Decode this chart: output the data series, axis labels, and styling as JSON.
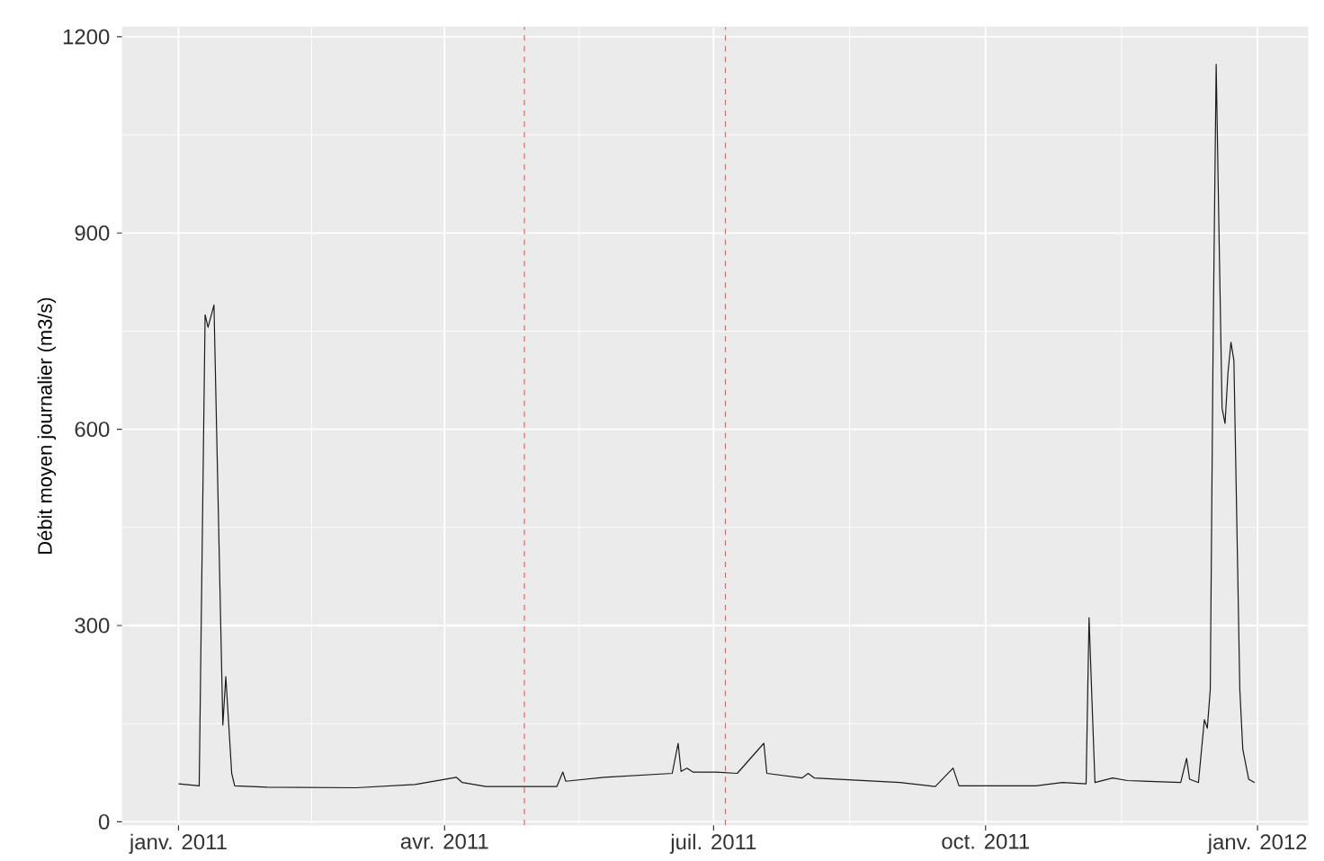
{
  "chart_data": {
    "type": "line",
    "ylabel": "Débit moyen journalier (m3/s)",
    "x": [
      "2011-01-01",
      "2011-01-08",
      "2011-01-10",
      "2011-01-11",
      "2011-01-13",
      "2011-01-16",
      "2011-01-17",
      "2011-01-19",
      "2011-01-20",
      "2011-01-31",
      "2011-03-02",
      "2011-03-22",
      "2011-04-05",
      "2011-04-07",
      "2011-04-15",
      "2011-05-09",
      "2011-05-11",
      "2011-05-12",
      "2011-05-25",
      "2011-06-17",
      "2011-06-19",
      "2011-06-20",
      "2011-06-22",
      "2011-06-24",
      "2011-07-02",
      "2011-07-09",
      "2011-07-18",
      "2011-07-19",
      "2011-07-31",
      "2011-08-02",
      "2011-08-04",
      "2011-09-02",
      "2011-09-14",
      "2011-09-20",
      "2011-09-22",
      "2011-10-18",
      "2011-10-27",
      "2011-11-04",
      "2011-11-05",
      "2011-11-06",
      "2011-11-07",
      "2011-11-13",
      "2011-11-18",
      "2011-12-06",
      "2011-12-08",
      "2011-12-09",
      "2011-12-12",
      "2011-12-14",
      "2011-12-15",
      "2011-12-16",
      "2011-12-17",
      "2011-12-18",
      "2011-12-19",
      "2011-12-20",
      "2011-12-21",
      "2011-12-22",
      "2011-12-23",
      "2011-12-24",
      "2011-12-26",
      "2011-12-27",
      "2011-12-29",
      "2011-12-31"
    ],
    "series": [
      {
        "color": "#1a1a1a",
        "values": [
          58,
          55,
          775,
          756,
          790,
          148,
          222,
          74,
          55,
          53,
          52,
          57,
          68,
          60,
          54,
          54,
          76,
          62,
          68,
          74,
          120,
          77,
          82,
          76,
          76,
          74,
          120,
          74,
          67,
          74,
          67,
          60,
          54,
          82,
          55,
          55,
          60,
          58,
          312,
          184,
          60,
          67,
          63,
          60,
          97,
          65,
          60,
          156,
          143,
          202,
          751,
          1158,
          888,
          632,
          609,
          687,
          733,
          705,
          202,
          111,
          65,
          60
        ]
      }
    ],
    "xlim": [
      "2010-12-13",
      "2012-01-18"
    ],
    "xticks": [
      {
        "value": "2011-01-01",
        "label": "janv. 2011"
      },
      {
        "value": "2011-04-01",
        "label": "avr. 2011"
      },
      {
        "value": "2011-07-01",
        "label": "juil. 2011"
      },
      {
        "value": "2011-10-01",
        "label": "oct. 2011"
      },
      {
        "value": "2012-01-01",
        "label": "janv. 2012"
      }
    ],
    "ylim": [
      -5,
      1215
    ],
    "yticks": [
      0,
      300,
      600,
      900,
      1200
    ],
    "ref_lines": [
      {
        "axis": "x",
        "value": "2011-04-28",
        "color": "#e06666",
        "line_style": "dashed"
      },
      {
        "axis": "x",
        "value": "2011-07-05",
        "color": "#e06666",
        "line_style": "dashed"
      }
    ],
    "grid": true,
    "marker": "none",
    "line_style": "solid"
  }
}
